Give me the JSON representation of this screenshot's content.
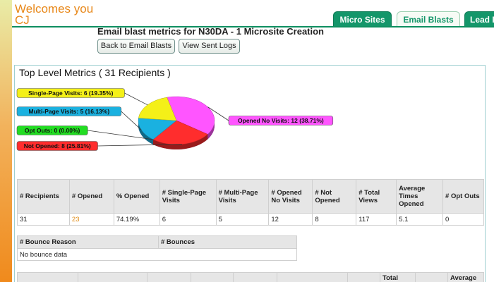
{
  "header": {
    "welcome": "Welcomes you CJ"
  },
  "tabs": [
    {
      "label": "Micro Sites"
    },
    {
      "label": "Email Blasts"
    },
    {
      "label": "Lead I"
    }
  ],
  "page": {
    "title": "Email blast metrics for N30DA - 1 Microsite Creation",
    "back_button": "Back to Email Blasts",
    "sent_logs_button": "View Sent Logs"
  },
  "panel": {
    "title": "Top Level Metrics ( 31 Recipients )"
  },
  "chart_data": {
    "type": "pie",
    "slices": [
      {
        "label": "Opened No Visits: 12 (38.71%)",
        "value": 12,
        "color": "#ff55ff"
      },
      {
        "label": "Not Opened: 8 (25.81%)",
        "value": 8,
        "color": "#ff2d2d"
      },
      {
        "label": "Opt Outs: 0 (0.00%)",
        "value": 0,
        "color": "#22dd22"
      },
      {
        "label": "Multi-Page Visits: 5 (16.13%)",
        "value": 5,
        "color": "#1ab1e0"
      },
      {
        "label": "Single-Page Visits: 6 (19.35%)",
        "value": 6,
        "color": "#f4f018"
      }
    ]
  },
  "metrics_table": {
    "headers": [
      "# Recipients",
      "# Opened",
      "% Opened",
      "# Single-Page Visits",
      "# Multi-Page Visits",
      "# Opened No Visits",
      "# Not Opened",
      "# Total Views",
      "Average Times Opened",
      "# Opt Outs"
    ],
    "row": [
      "31",
      "23",
      "74.19%",
      "6",
      "5",
      "12",
      "8",
      "117",
      "5.1",
      "0"
    ]
  },
  "bounce_table": {
    "headers": [
      "# Bounce Reason",
      "# Bounces"
    ],
    "empty_text": "No bounce data"
  },
  "bottom_table": {
    "headers": [
      "",
      "",
      "",
      "",
      "",
      "",
      "",
      "Total",
      "",
      "Average"
    ]
  }
}
